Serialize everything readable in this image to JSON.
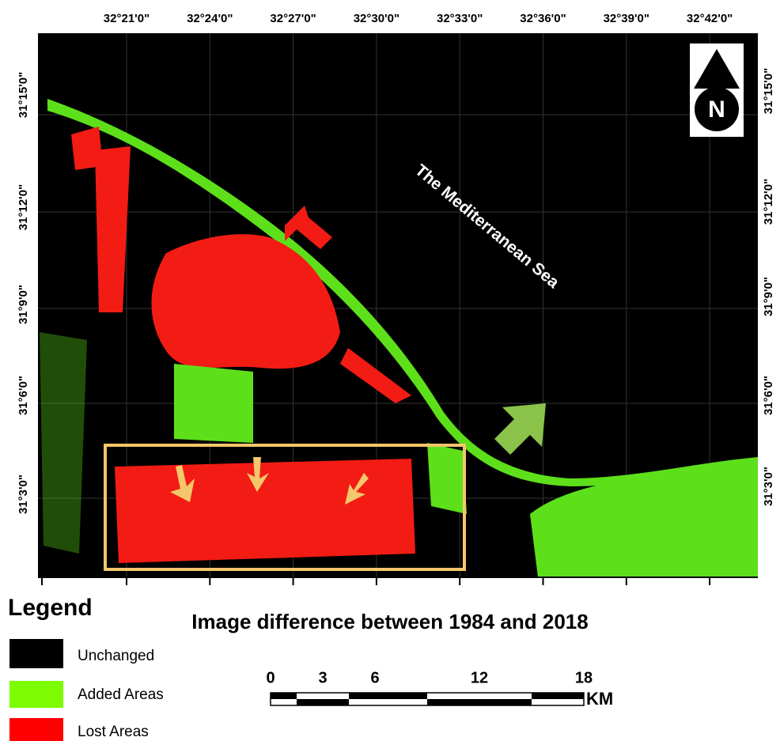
{
  "map": {
    "top_labels": [
      "32°21'0\"",
      "32°24'0\"",
      "32°27'0\"",
      "32°30'0\"",
      "32°33'0\"",
      "32°36'0\"",
      "32°39'0\"",
      "32°42'0\""
    ],
    "left_labels": [
      "31°15'0\"",
      "31°12'0\"",
      "31°9'0\"",
      "31°6'0\"",
      "31°3'0\""
    ],
    "right_labels": [
      "31°15'0\"",
      "31°12'0\"",
      "31°9'0\"",
      "31°6'0\"",
      "31°3'0\""
    ],
    "sea_label": "The Mediterranean Sea",
    "north": "N"
  },
  "legend": {
    "title": "Legend",
    "items": [
      "Unchanged",
      "Added Areas",
      "Lost Areas"
    ]
  },
  "title": "Image difference between 1984 and 2018",
  "scale": {
    "ticks": [
      0,
      3,
      6,
      12,
      18
    ],
    "unit": "KM"
  }
}
